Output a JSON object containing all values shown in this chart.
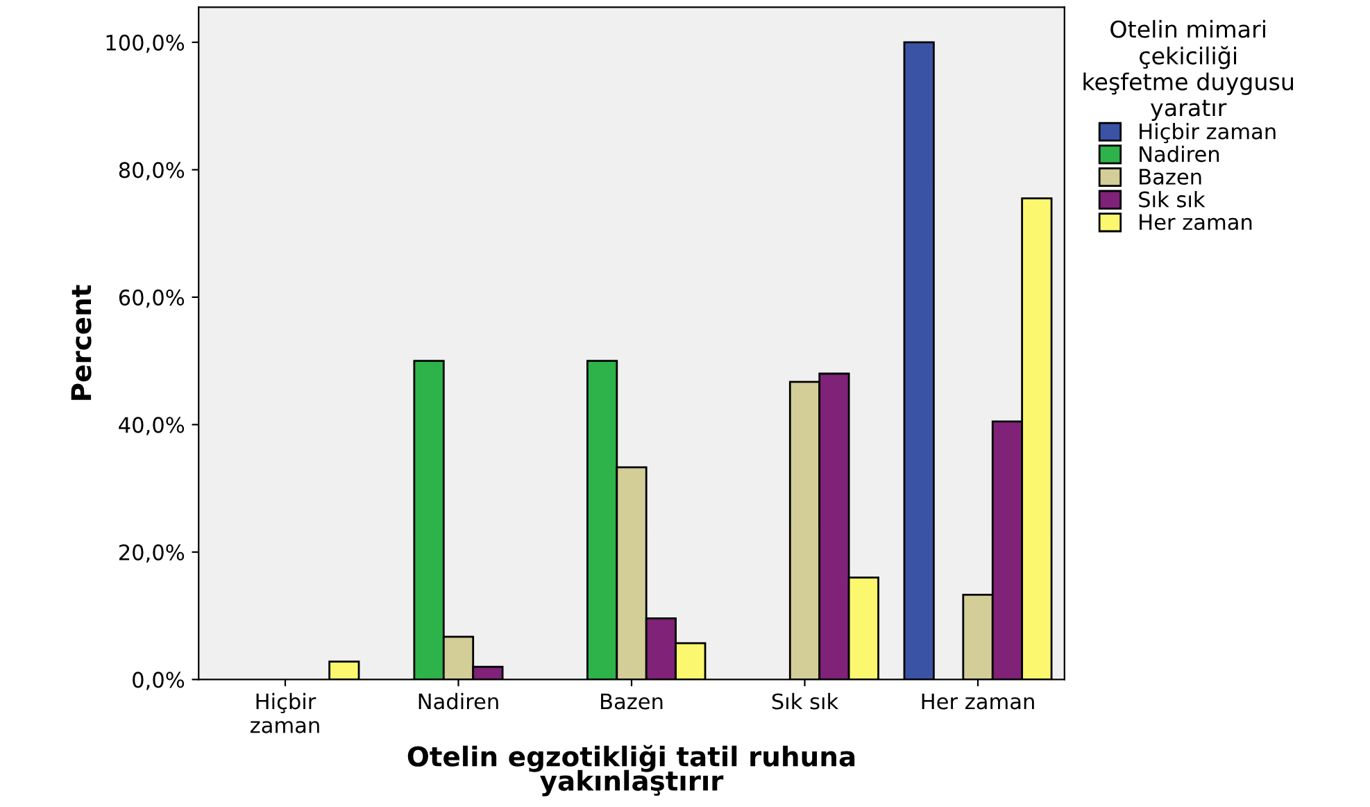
{
  "chart_data": {
    "type": "bar",
    "xlabel": "Otelin egzotikliği tatil ruhuna\nyakınlaştırır",
    "ylabel": "Percent",
    "legend_title": "Otelin mimari\nçekiciliği\nkeşfetme duygusu\nyaratır",
    "categories": [
      "Hiçbir\nzaman",
      "Nadiren",
      "Bazen",
      "Sık sık",
      "Her zaman"
    ],
    "series": [
      {
        "name": "Hiçbir zaman",
        "color": "#3a53a4",
        "values": [
          0,
          0,
          0,
          0,
          100
        ]
      },
      {
        "name": "Nadiren",
        "color": "#2db34a",
        "values": [
          0,
          50,
          50,
          0,
          0
        ]
      },
      {
        "name": "Bazen",
        "color": "#d3ce97",
        "values": [
          0,
          6.7,
          33.3,
          46.7,
          13.3
        ]
      },
      {
        "name": "Sık sık",
        "color": "#7f2278",
        "values": [
          0,
          2.0,
          9.6,
          48.0,
          40.5
        ]
      },
      {
        "name": "Her zaman",
        "color": "#fbf870",
        "values": [
          2.8,
          0,
          5.7,
          16.0,
          75.5
        ]
      }
    ],
    "ylim": [
      0,
      105.5
    ],
    "yticks": [
      {
        "value": 0,
        "label": "0,0%"
      },
      {
        "value": 20,
        "label": "20,0%"
      },
      {
        "value": 40,
        "label": "40,0%"
      },
      {
        "value": 60,
        "label": "60,0%"
      },
      {
        "value": 80,
        "label": "80,0%"
      },
      {
        "value": 100,
        "label": "100,0%"
      }
    ],
    "grid": false,
    "legend": "top right"
  }
}
